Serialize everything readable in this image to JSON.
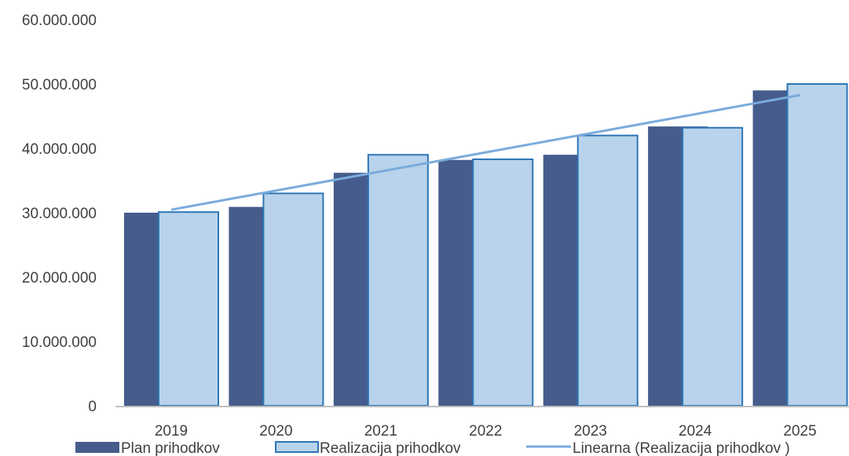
{
  "chart_data": {
    "type": "bar",
    "categories": [
      "2019",
      "2020",
      "2021",
      "2022",
      "2023",
      "2024",
      "2025"
    ],
    "series": [
      {
        "name": "Plan prihodkov",
        "values": [
          30000000,
          30900000,
          36200000,
          38200000,
          39000000,
          43400000,
          49000000
        ],
        "color": "#455C8C"
      },
      {
        "name": "Realizacija prihodkov",
        "values": [
          30100000,
          33000000,
          39000000,
          38300000,
          42000000,
          43200000,
          50000000
        ],
        "color": "#B8D3EB",
        "stroke": "#2E75B6"
      }
    ],
    "trendline": {
      "name": "Linearna (Realizacija prihodkov )",
      "type": "linear",
      "of_series": "Realizacija prihodkov",
      "color": "#7AABDC"
    },
    "overlap_color": "#8BABCE",
    "ylim": [
      0,
      60000000
    ],
    "yticks": [
      0,
      10000000,
      20000000,
      30000000,
      40000000,
      50000000,
      60000000
    ],
    "ytick_labels": [
      "0",
      "10.000.000",
      "20.000.000",
      "30.000.000",
      "40.000.000",
      "50.000.000",
      "60.000.000"
    ],
    "title": "",
    "xlabel": "",
    "ylabel": "",
    "grid": false,
    "legend": "bottom"
  }
}
